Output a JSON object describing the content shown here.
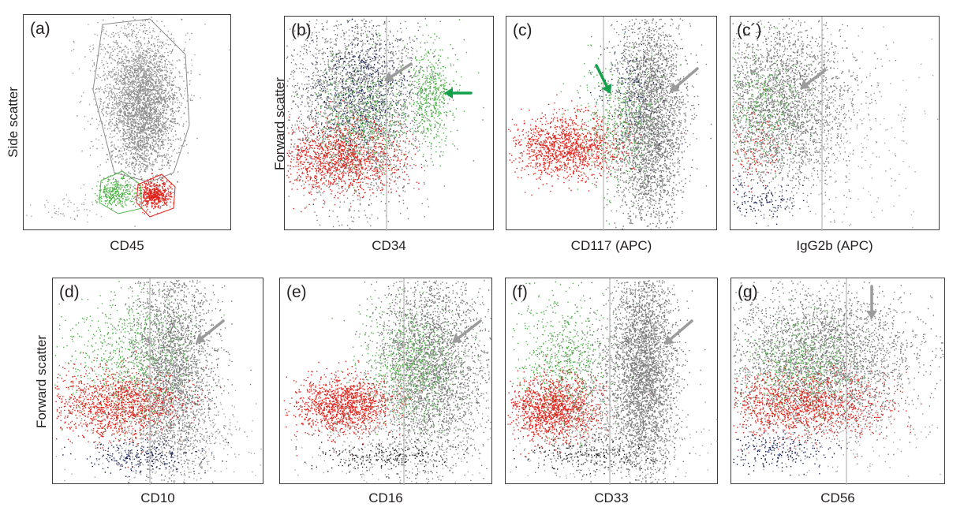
{
  "y_labels": {
    "side": "Side scatter",
    "forward_row1": "Forward scatter",
    "forward_row2": "Forward scatter"
  },
  "colors": {
    "gray": "#7a7a7a",
    "red": "#e0241b",
    "green": "#4fb548",
    "navy": "#1a2358",
    "arrow_gray": "#9b9b9b",
    "arrow_green": "#12a04a"
  },
  "chart_data": [
    {
      "type": "scatter",
      "panel": "(a)",
      "xlabel": "CD45",
      "ylabel": "Side scatter",
      "gates": [
        "gray",
        "green",
        "red"
      ]
    },
    {
      "type": "scatter",
      "panel": "(b)",
      "xlabel": "CD34",
      "ylabel": "Forward scatter",
      "arrows": [
        "gray",
        "green"
      ]
    },
    {
      "type": "scatter",
      "panel": "(c)",
      "xlabel": "CD117 (APC)",
      "arrows": [
        "green",
        "gray"
      ]
    },
    {
      "type": "scatter",
      "panel": "(c´)",
      "xlabel": "IgG2b (APC)",
      "arrows": [
        "gray"
      ]
    },
    {
      "type": "scatter",
      "panel": "(d)",
      "xlabel": "CD10",
      "ylabel": "Forward scatter",
      "arrows": [
        "gray"
      ]
    },
    {
      "type": "scatter",
      "panel": "(e)",
      "xlabel": "CD16",
      "arrows": [
        "gray"
      ]
    },
    {
      "type": "scatter",
      "panel": "(f)",
      "xlabel": "CD33",
      "arrows": [
        "gray"
      ]
    },
    {
      "type": "scatter",
      "panel": "(g)",
      "xlabel": "CD56",
      "arrows": [
        "gray"
      ]
    }
  ]
}
